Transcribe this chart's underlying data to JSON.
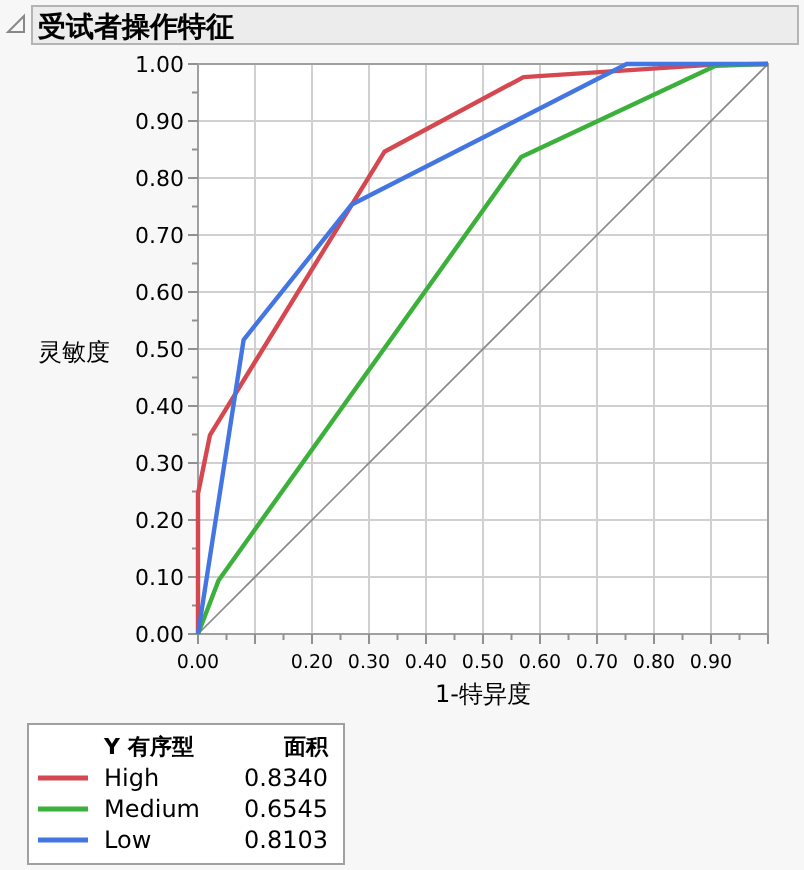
{
  "chart_data": {
    "type": "line",
    "title": "受试者操作特征",
    "xlabel": "1-特异度",
    "ylabel": "灵敏度",
    "legend_title": "Y 有序型",
    "xlim": [
      0,
      1
    ],
    "ylim": [
      0,
      1
    ],
    "xticks": [
      {
        "value": 0,
        "label": "0.00"
      },
      {
        "value": 0.1,
        "label": null
      },
      {
        "value": 0.2,
        "label": "0.20"
      },
      {
        "value": 0.3,
        "label": "0.30"
      },
      {
        "value": 0.4,
        "label": "0.40"
      },
      {
        "value": 0.5,
        "label": "0.50"
      },
      {
        "value": 0.6,
        "label": "0.60"
      },
      {
        "value": 0.7,
        "label": "0.70"
      },
      {
        "value": 0.8,
        "label": "0.80"
      },
      {
        "value": 0.9,
        "label": "0.90"
      },
      {
        "value": 1,
        "label": null
      }
    ],
    "yticks": [
      {
        "value": 0,
        "label": "0.00"
      },
      {
        "value": 0.1,
        "label": "0.10"
      },
      {
        "value": 0.2,
        "label": "0.20"
      },
      {
        "value": 0.3,
        "label": "0.30"
      },
      {
        "value": 0.4,
        "label": "0.40"
      },
      {
        "value": 0.5,
        "label": "0.50"
      },
      {
        "value": 0.6,
        "label": "0.60"
      },
      {
        "value": 0.7,
        "label": "0.70"
      },
      {
        "value": 0.8,
        "label": "0.80"
      },
      {
        "value": 0.9,
        "label": "0.90"
      },
      {
        "value": 1,
        "label": "1.00"
      }
    ],
    "grid": true,
    "legend": "bottom left",
    "marker": "none",
    "line_style": "solid",
    "annotations": [
      "面积",
      "0.8340",
      "0.6545",
      "0.8103"
    ],
    "series": [
      {
        "color": "#888888",
        "x": [
          0,
          1
        ],
        "values": [
          0,
          1
        ]
      },
      {
        "name": "High",
        "color": "#d5484f",
        "x": [
          0,
          0,
          0.021,
          0.327,
          0.571,
          0.904,
          1
        ],
        "values": [
          0,
          0.246,
          0.349,
          0.846,
          0.977,
          0.999,
          1
        ]
      },
      {
        "name": "Medium",
        "color": "#3bb03b",
        "x": [
          0,
          0.036,
          0.567,
          0.908,
          1
        ],
        "values": [
          0,
          0.094,
          0.837,
          0.997,
          1
        ]
      },
      {
        "name": "Low",
        "color": "#4376e3",
        "x": [
          0,
          0.08,
          0.269,
          0.752,
          1
        ],
        "values": [
          0,
          0.516,
          0.753,
          1,
          1
        ]
      }
    ]
  }
}
